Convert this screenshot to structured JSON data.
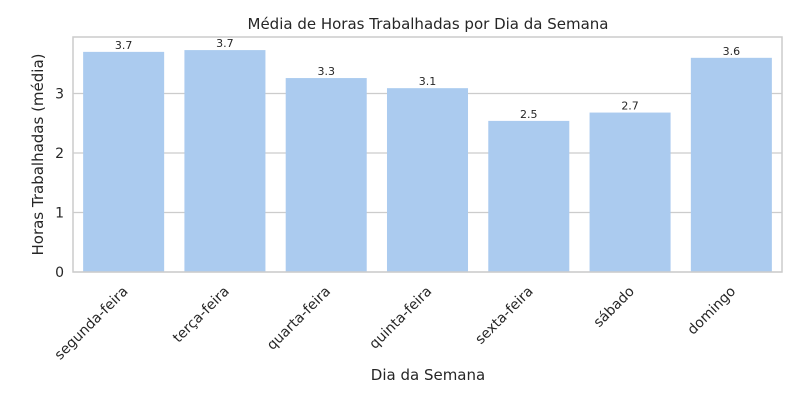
{
  "chart_data": {
    "type": "bar",
    "title": "Média de Horas Trabalhadas por Dia da Semana",
    "xlabel": "Dia da Semana",
    "ylabel": "Horas Trabalhadas (média)",
    "categories": [
      "segunda-feira",
      "terça-feira",
      "quarta-feira",
      "quinta-feira",
      "sexta-feira",
      "sábado",
      "domingo"
    ],
    "values": [
      3.7,
      3.73,
      3.26,
      3.09,
      2.54,
      2.68,
      3.6
    ],
    "data_labels": [
      "3.7",
      "3.7",
      "3.3",
      "3.1",
      "2.5",
      "2.7",
      "3.6"
    ],
    "yticks": [
      0,
      1,
      2,
      3
    ],
    "ytick_labels": [
      "0",
      "1",
      "2",
      "3"
    ],
    "ylim": [
      0,
      3.95
    ],
    "grid": true,
    "bar_color": "#abcbef",
    "x_tick_rotation": 45
  }
}
